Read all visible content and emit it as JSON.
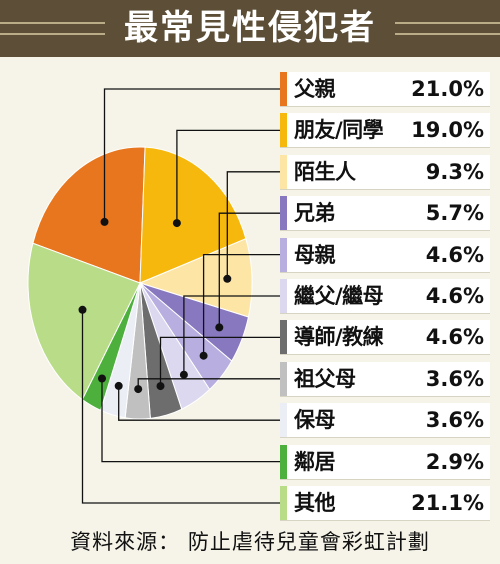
{
  "chart_data": {
    "type": "pie",
    "title": "最常見性侵犯者",
    "categories": [
      "父親",
      "朋友/同學",
      "陌生人",
      "兄弟",
      "母親",
      "繼父/繼母",
      "導師/教練",
      "祖父母",
      "保母",
      "鄰居",
      "其他"
    ],
    "values": [
      21.0,
      19.0,
      9.3,
      5.7,
      4.6,
      4.6,
      4.6,
      3.6,
      3.6,
      2.9,
      21.1
    ],
    "labels": [
      "21.0%",
      "19.0%",
      "9.3%",
      "5.7%",
      "4.6%",
      "4.6%",
      "4.6%",
      "3.6%",
      "3.6%",
      "2.9%",
      "21.1%"
    ],
    "colors": [
      "#e8761e",
      "#f6b80c",
      "#fde5a6",
      "#8878c0",
      "#b8aee0",
      "#dcd8f0",
      "#6d6d6d",
      "#c0c0c0",
      "#eceef6",
      "#4db03d",
      "#b8dc88"
    ],
    "legend_placement": "right"
  },
  "source": "資料來源： 防止虐待兒童會彩虹計劃"
}
